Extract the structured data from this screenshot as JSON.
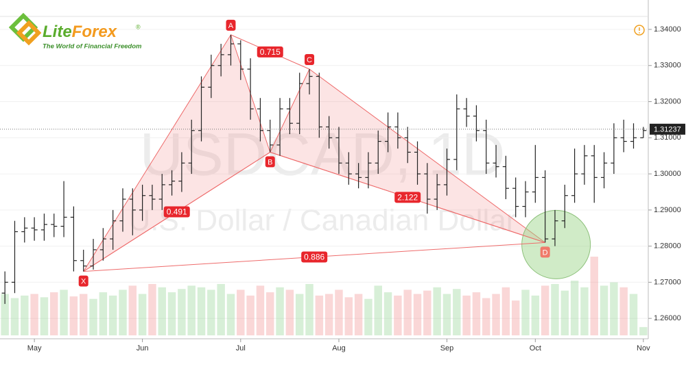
{
  "logo": {
    "name_part_1": "Lite",
    "name_part_2": "Forex",
    "registered": "®",
    "tagline": "The World of Financial Freedom"
  },
  "chart_data": {
    "type": "ohlc",
    "watermark": [
      "USDCAD, 1D",
      "U.S. Dollar / Canadian Dollar"
    ],
    "categories": [
      null,
      null,
      null,
      "May",
      null,
      null,
      null,
      null,
      null,
      null,
      null,
      null,
      null,
      null,
      "Jun",
      null,
      null,
      null,
      null,
      null,
      null,
      null,
      null,
      null,
      "Jul",
      null,
      null,
      null,
      null,
      null,
      null,
      null,
      null,
      null,
      "Aug",
      null,
      null,
      null,
      null,
      null,
      null,
      null,
      null,
      null,
      null,
      "Sep",
      null,
      null,
      null,
      null,
      null,
      null,
      null,
      null,
      "Oct",
      null,
      null,
      null,
      null,
      null,
      null,
      null,
      null,
      null,
      null,
      "Nov"
    ],
    "open": [
      1.267,
      1.27,
      1.284,
      1.285,
      1.2845,
      1.286,
      1.2855,
      1.288,
      1.276,
      1.2745,
      1.279,
      1.282,
      1.287,
      1.293,
      1.29,
      1.294,
      1.293,
      1.297,
      1.298,
      1.303,
      1.312,
      1.324,
      1.33,
      1.333,
      1.336,
      1.329,
      1.318,
      1.312,
      1.308,
      1.318,
      1.314,
      1.325,
      1.327,
      1.313,
      1.31,
      1.303,
      1.3,
      1.299,
      1.303,
      1.309,
      1.313,
      1.31,
      1.306,
      1.3,
      1.293,
      1.297,
      1.304,
      1.318,
      1.316,
      1.312,
      1.303,
      1.302,
      1.296,
      1.291,
      1.295,
      1.299,
      1.282,
      1.287,
      1.294,
      1.3,
      1.305,
      1.299,
      1.303,
      1.31,
      1.309,
      1.31
    ],
    "high": [
      1.273,
      1.287,
      1.288,
      1.288,
      1.289,
      1.289,
      1.298,
      1.291,
      1.279,
      1.282,
      1.285,
      1.29,
      1.296,
      1.296,
      1.297,
      1.297,
      1.3,
      1.301,
      1.306,
      1.315,
      1.327,
      1.333,
      1.336,
      1.3385,
      1.337,
      1.332,
      1.321,
      1.315,
      1.321,
      1.321,
      1.328,
      1.329,
      1.328,
      1.316,
      1.313,
      1.306,
      1.303,
      1.306,
      1.312,
      1.317,
      1.317,
      1.313,
      1.309,
      1.303,
      1.3,
      1.307,
      1.322,
      1.321,
      1.319,
      1.315,
      1.308,
      1.305,
      1.299,
      1.298,
      1.308,
      1.301,
      1.29,
      1.297,
      1.307,
      1.308,
      1.308,
      1.306,
      1.314,
      1.315,
      1.314,
      1.313
    ],
    "low": [
      1.264,
      1.267,
      1.281,
      1.2815,
      1.2815,
      1.2825,
      1.2825,
      1.273,
      1.273,
      1.2735,
      1.276,
      1.279,
      1.284,
      1.283,
      1.287,
      1.29,
      1.29,
      1.294,
      1.295,
      1.3,
      1.309,
      1.321,
      1.327,
      1.33,
      1.326,
      1.315,
      1.309,
      1.306,
      1.305,
      1.311,
      1.311,
      1.322,
      1.31,
      1.307,
      1.3,
      1.297,
      1.296,
      1.296,
      1.3,
      1.306,
      1.307,
      1.303,
      1.297,
      1.289,
      1.29,
      1.294,
      1.301,
      1.313,
      1.309,
      1.3,
      1.299,
      1.293,
      1.288,
      1.288,
      1.292,
      1.281,
      1.28,
      1.285,
      1.292,
      1.297,
      1.292,
      1.296,
      1.3,
      1.306,
      1.307,
      1.31
    ],
    "close": [
      1.27,
      1.284,
      1.285,
      1.2845,
      1.286,
      1.2855,
      1.288,
      1.276,
      1.2745,
      1.279,
      1.282,
      1.287,
      1.293,
      1.29,
      1.294,
      1.293,
      1.297,
      1.298,
      1.303,
      1.312,
      1.324,
      1.33,
      1.333,
      1.336,
      1.329,
      1.318,
      1.312,
      1.308,
      1.318,
      1.314,
      1.325,
      1.327,
      1.313,
      1.31,
      1.303,
      1.3,
      1.299,
      1.303,
      1.309,
      1.313,
      1.31,
      1.306,
      1.3,
      1.293,
      1.297,
      1.304,
      1.318,
      1.316,
      1.312,
      1.303,
      1.302,
      1.296,
      1.291,
      1.295,
      1.299,
      1.282,
      1.287,
      1.294,
      1.3,
      1.305,
      1.299,
      1.303,
      1.31,
      1.309,
      1.31,
      1.312
    ],
    "volume": [
      50,
      45,
      48,
      50,
      46,
      52,
      55,
      47,
      50,
      44,
      52,
      48,
      55,
      60,
      50,
      62,
      58,
      52,
      56,
      60,
      58,
      55,
      62,
      50,
      55,
      48,
      60,
      52,
      58,
      55,
      50,
      62,
      48,
      50,
      55,
      46,
      50,
      44,
      60,
      52,
      48,
      55,
      50,
      54,
      58,
      50,
      56,
      48,
      52,
      45,
      50,
      58,
      42,
      55,
      48,
      60,
      62,
      54,
      66,
      58,
      95,
      60,
      64,
      58,
      50,
      10
    ],
    "ylim": [
      1.2553,
      1.3434
    ],
    "yticks": [
      {
        "value": 1.26,
        "label": "1.26000"
      },
      {
        "value": 1.27,
        "label": "1.27000"
      },
      {
        "value": 1.28,
        "label": "1.28000"
      },
      {
        "value": 1.29,
        "label": "1.29000"
      },
      {
        "value": 1.3,
        "label": "1.30000"
      },
      {
        "value": 1.31,
        "label": "1.31000"
      },
      {
        "value": 1.32,
        "label": "1.32000"
      },
      {
        "value": 1.33,
        "label": "1.33000"
      },
      {
        "value": 1.34,
        "label": "1.34000"
      }
    ],
    "grid": true,
    "last_price": 1.31237,
    "pattern": {
      "points": [
        {
          "label": "X",
          "i": 8,
          "value": 1.273
        },
        {
          "label": "A",
          "i": 23,
          "value": 1.3385
        },
        {
          "label": "B",
          "i": 27,
          "value": 1.306
        },
        {
          "label": "C",
          "i": 31,
          "value": 1.329
        },
        {
          "label": "D",
          "i": 55,
          "value": 1.281
        }
      ],
      "ratios": [
        {
          "value": 0.491,
          "between": [
            "X",
            "B"
          ]
        },
        {
          "value": 0.715,
          "between": [
            "A",
            "C"
          ]
        },
        {
          "value": 2.122,
          "between": [
            "B",
            "D"
          ]
        },
        {
          "value": 0.886,
          "between": [
            "X",
            "D"
          ]
        }
      ]
    }
  }
}
